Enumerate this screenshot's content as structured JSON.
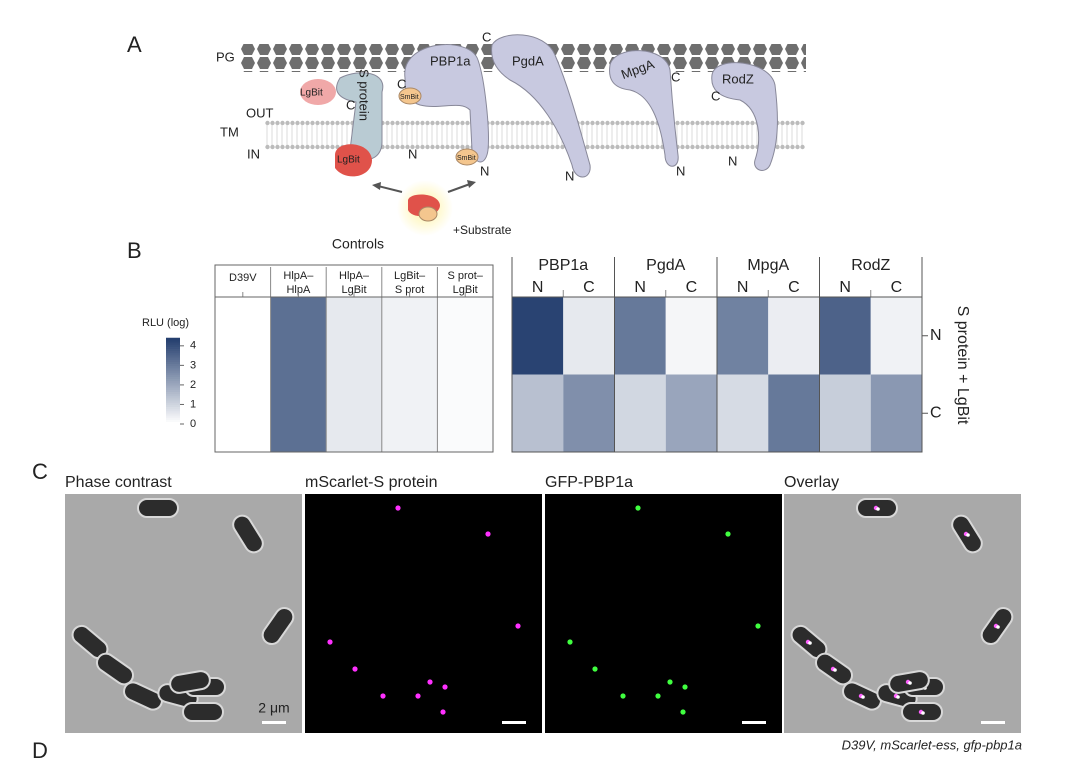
{
  "figure": {
    "panel_a": {
      "label": "A",
      "layers": {
        "pg": "PG",
        "out": "OUT",
        "tm": "TM",
        "in": "IN"
      },
      "proteins": [
        "S protein",
        "PBP1a",
        "PgdA",
        "MpgA",
        "RodZ"
      ],
      "tags": [
        "LgBit",
        "LgBit",
        "SmBit",
        "SmBit"
      ],
      "termini": [
        "C",
        "C",
        "C",
        "C",
        "C",
        "N",
        "N",
        "N",
        "N",
        "N"
      ],
      "substrate": "+Substrate"
    },
    "panel_b": {
      "label": "B",
      "controls_title": "Controls",
      "controls": [
        [
          "D39V"
        ],
        [
          "HlpA–",
          "HlpA"
        ],
        [
          "HlpA–",
          "LgBit"
        ],
        [
          "LgBit–",
          "S prot"
        ],
        [
          "S prot–",
          "LgBit"
        ]
      ],
      "control_values": [
        0,
        3.2,
        0.5,
        0.3,
        0.1
      ],
      "colorbar": {
        "title": "RLU (log)",
        "clim": [
          0,
          4.4
        ],
        "ticks": [
          0,
          1,
          2,
          3,
          4
        ],
        "low": "#ffffff",
        "high": "#1f3a6b"
      },
      "proteins": [
        "PBP1a",
        "PgdA",
        "MpgA",
        "RodZ"
      ],
      "termini": [
        "N",
        "C"
      ],
      "rows": [
        "N",
        "C"
      ],
      "row_title": "S protein + LgBit",
      "values": [
        [
          4.2,
          0.5,
          3.0,
          0.2,
          2.8,
          0.4,
          3.5,
          0.3
        ],
        [
          1.4,
          2.5,
          0.9,
          2.0,
          0.8,
          3.0,
          1.1,
          2.3
        ]
      ]
    },
    "panel_c": {
      "label": "C",
      "titles": [
        "Phase contrast",
        "mScarlet-S protein",
        "GFP-PBP1a",
        "Overlay"
      ],
      "title_colors": [
        "#222222",
        "#d020d0",
        "#30a030",
        "#222222"
      ],
      "scale": "2 μm",
      "caption": "D39V, mScarlet-ess, gfp-pbp1a"
    },
    "panel_d": {
      "label": "D"
    }
  }
}
